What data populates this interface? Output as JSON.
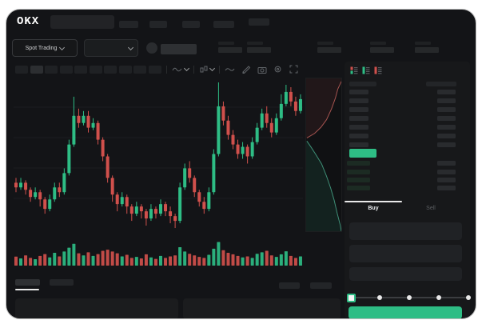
{
  "brand": {
    "logo": "OKX"
  },
  "market_selector": {
    "label": "Spot Trading"
  },
  "order_panel": {
    "tabs": {
      "buy": "Buy",
      "sell": "Sell"
    },
    "ask_rows": 7,
    "bid_rows": 4,
    "slider_stops": 5
  },
  "colors": {
    "up_green": "#2ebd85",
    "down_red": "#d0504c",
    "buy_button": "#2ebd85",
    "last_price_block": "#2ebd85",
    "depth_ask_line": "#a65450",
    "depth_bid_line": "#3f8f77"
  },
  "chart_data": {
    "type": "candlestick",
    "title": "",
    "xlabel": "",
    "ylabel": "",
    "axis_labels_visible": false,
    "grid": "faint horizontal lines",
    "price_scale": {
      "min": 25,
      "max": 90
    },
    "candles": [
      [
        46,
        48,
        42,
        44
      ],
      [
        44,
        48,
        43,
        46
      ],
      [
        46,
        47,
        41,
        43
      ],
      [
        43,
        44,
        38,
        40
      ],
      [
        40,
        44,
        39,
        42
      ],
      [
        42,
        43,
        36,
        39
      ],
      [
        39,
        40,
        33,
        35
      ],
      [
        35,
        41,
        34,
        39
      ],
      [
        39,
        46,
        38,
        44
      ],
      [
        44,
        46,
        40,
        42
      ],
      [
        42,
        52,
        41,
        50
      ],
      [
        50,
        64,
        49,
        62
      ],
      [
        62,
        82,
        61,
        74
      ],
      [
        74,
        77,
        69,
        71
      ],
      [
        71,
        76,
        70,
        74
      ],
      [
        74,
        76,
        67,
        69
      ],
      [
        69,
        73,
        68,
        71
      ],
      [
        71,
        72,
        62,
        64
      ],
      [
        64,
        65,
        55,
        57
      ],
      [
        57,
        58,
        46,
        48
      ],
      [
        48,
        49,
        38,
        41
      ],
      [
        41,
        42,
        34,
        37
      ],
      [
        37,
        42,
        36,
        40
      ],
      [
        40,
        41,
        33,
        36
      ],
      [
        36,
        37,
        30,
        33
      ],
      [
        33,
        38,
        32,
        36
      ],
      [
        36,
        37,
        31,
        34
      ],
      [
        34,
        35,
        28,
        31
      ],
      [
        31,
        37,
        30,
        35
      ],
      [
        35,
        36,
        31,
        33
      ],
      [
        33,
        39,
        32,
        37
      ],
      [
        37,
        38,
        32,
        34
      ],
      [
        34,
        36,
        29,
        32
      ],
      [
        32,
        33,
        27,
        30
      ],
      [
        30,
        46,
        29,
        44
      ],
      [
        44,
        54,
        43,
        52
      ],
      [
        52,
        55,
        46,
        48
      ],
      [
        48,
        49,
        40,
        42
      ],
      [
        42,
        43,
        36,
        38
      ],
      [
        38,
        40,
        33,
        35
      ],
      [
        35,
        44,
        34,
        42
      ],
      [
        42,
        60,
        41,
        58
      ],
      [
        58,
        88,
        57,
        78
      ],
      [
        78,
        80,
        70,
        72
      ],
      [
        72,
        74,
        64,
        66
      ],
      [
        66,
        68,
        60,
        62
      ],
      [
        62,
        64,
        56,
        58
      ],
      [
        58,
        63,
        56,
        61
      ],
      [
        61,
        62,
        54,
        57
      ],
      [
        57,
        65,
        56,
        63
      ],
      [
        63,
        71,
        62,
        69
      ],
      [
        69,
        77,
        68,
        75
      ],
      [
        75,
        78,
        69,
        71
      ],
      [
        71,
        73,
        65,
        67
      ],
      [
        67,
        75,
        66,
        73
      ],
      [
        73,
        83,
        72,
        79
      ],
      [
        79,
        87,
        78,
        84
      ],
      [
        84,
        86,
        78,
        80
      ],
      [
        80,
        82,
        74,
        76
      ],
      [
        76,
        83,
        75,
        81
      ]
    ],
    "volume": [
      35,
      28,
      40,
      30,
      25,
      38,
      45,
      32,
      50,
      36,
      55,
      70,
      85,
      48,
      40,
      52,
      38,
      45,
      58,
      62,
      55,
      48,
      36,
      42,
      30,
      34,
      28,
      44,
      32,
      26,
      38,
      30,
      36,
      40,
      72,
      55,
      46,
      40,
      34,
      30,
      42,
      66,
      92,
      60,
      50,
      44,
      38,
      32,
      36,
      30,
      46,
      52,
      58,
      40,
      34,
      44,
      56,
      38,
      30,
      36
    ],
    "depth": {
      "asks": [
        [
          100,
          2
        ],
        [
          90,
          7
        ],
        [
          83,
          13
        ],
        [
          72,
          20
        ],
        [
          58,
          27
        ],
        [
          42,
          32
        ],
        [
          24,
          36
        ],
        [
          2,
          39
        ]
      ],
      "bids": [
        [
          2,
          41
        ],
        [
          14,
          45
        ],
        [
          28,
          50
        ],
        [
          44,
          56
        ],
        [
          58,
          64
        ],
        [
          70,
          72
        ],
        [
          80,
          80
        ],
        [
          88,
          88
        ],
        [
          97,
          96
        ],
        [
          100,
          100
        ]
      ]
    }
  }
}
